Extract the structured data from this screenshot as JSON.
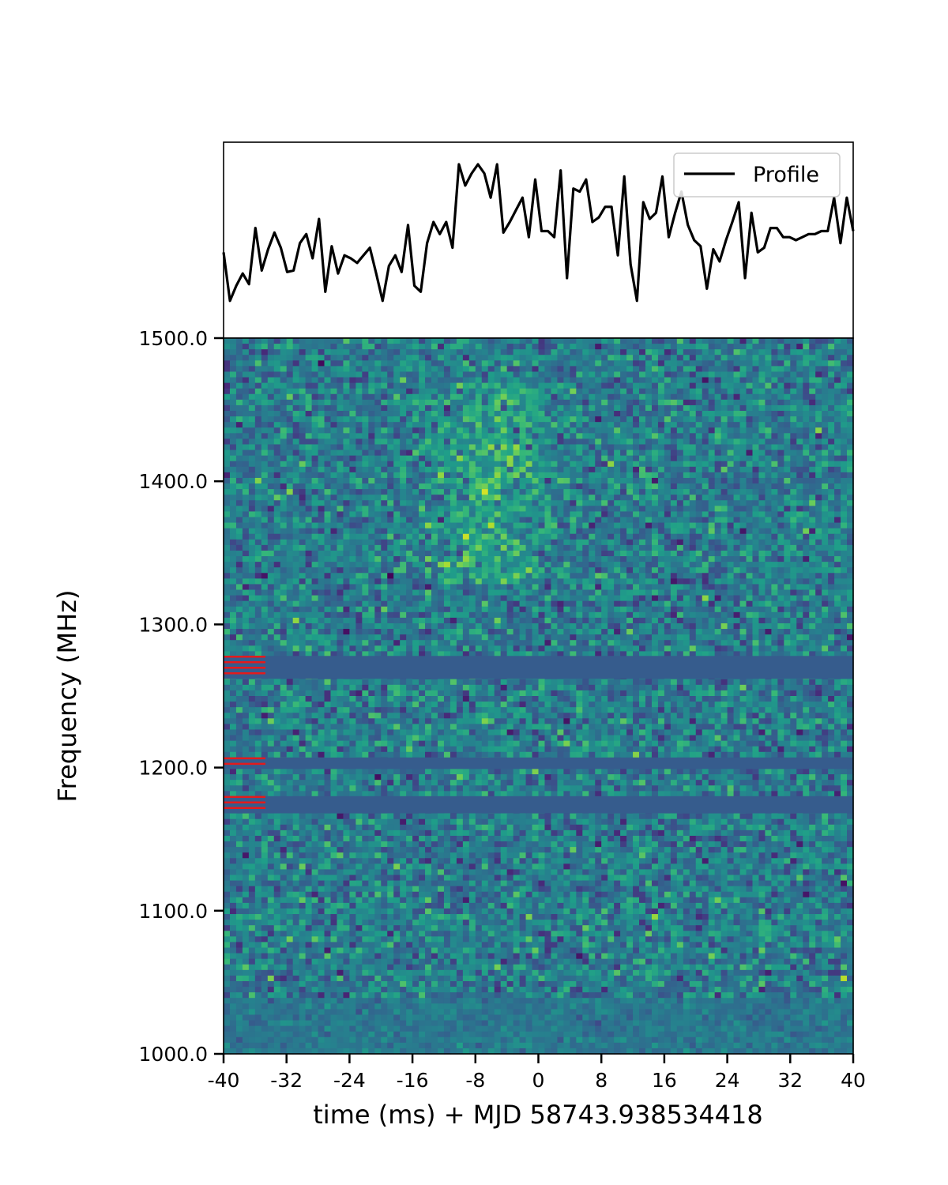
{
  "chart_data": [
    {
      "type": "line",
      "panel": "profile",
      "legend": {
        "entries": [
          "Profile"
        ],
        "placement": "top-right"
      },
      "series": [
        {
          "name": "Profile",
          "color": "#000000",
          "x_range": [
            -40,
            40
          ],
          "values": [
            0.42,
            0.1,
            0.2,
            0.28,
            0.21,
            0.58,
            0.3,
            0.44,
            0.55,
            0.45,
            0.29,
            0.3,
            0.48,
            0.54,
            0.38,
            0.64,
            0.16,
            0.46,
            0.28,
            0.4,
            0.38,
            0.35,
            0.4,
            0.45,
            0.28,
            0.1,
            0.33,
            0.4,
            0.29,
            0.6,
            0.2,
            0.16,
            0.48,
            0.62,
            0.54,
            0.62,
            0.45,
            1.0,
            0.86,
            0.94,
            1.0,
            0.94,
            0.78,
            1.0,
            0.55,
            0.62,
            0.7,
            0.78,
            0.52,
            0.9,
            0.56,
            0.56,
            0.52,
            0.96,
            0.25,
            0.84,
            0.82,
            0.9,
            0.62,
            0.65,
            0.72,
            0.72,
            0.4,
            0.92,
            0.34,
            0.1,
            0.75,
            0.64,
            0.68,
            0.92,
            0.52,
            0.68,
            0.82,
            0.6,
            0.5,
            0.46,
            0.18,
            0.44,
            0.36,
            0.5,
            0.62,
            0.75,
            0.25,
            0.68,
            0.42,
            0.45,
            0.58,
            0.58,
            0.52,
            0.52,
            0.5,
            0.52,
            0.54,
            0.54,
            0.56,
            0.56,
            0.78,
            0.48,
            0.78,
            0.56
          ]
        }
      ],
      "xlim": [
        -40,
        40
      ]
    },
    {
      "type": "heatmap",
      "panel": "waterfall",
      "xlabel": "time (ms) + MJD 58743.938534418",
      "ylabel": "Frequency (MHz)",
      "xlim": [
        -40,
        40
      ],
      "ylim": [
        1000,
        1500
      ],
      "xticks": [
        -40,
        -32,
        -24,
        -16,
        -8,
        0,
        8,
        16,
        24,
        32,
        40
      ],
      "xtick_labels": [
        "-40",
        "-32",
        "-24",
        "-16",
        "-8",
        "0",
        "8",
        "16",
        "24",
        "32",
        "40"
      ],
      "yticks": [
        1000,
        1100,
        1200,
        1300,
        1400,
        1500
      ],
      "ytick_labels": [
        "1000.0",
        "1100.0",
        "1200.0",
        "1300.0",
        "1400.0",
        "1500.0"
      ],
      "colormap": "viridis",
      "n_time_bins": 100,
      "n_freq_channels": 128,
      "masked_bands_mhz": [
        [
          1262,
          1278
        ],
        [
          1199,
          1207
        ],
        [
          1168,
          1180
        ]
      ],
      "masked_fill_color": "#365c8d",
      "mask_marker_color": "#e31a1c",
      "burst": {
        "center_time_ms": -6,
        "freq_range_mhz": [
          1330,
          1470
        ]
      }
    }
  ]
}
